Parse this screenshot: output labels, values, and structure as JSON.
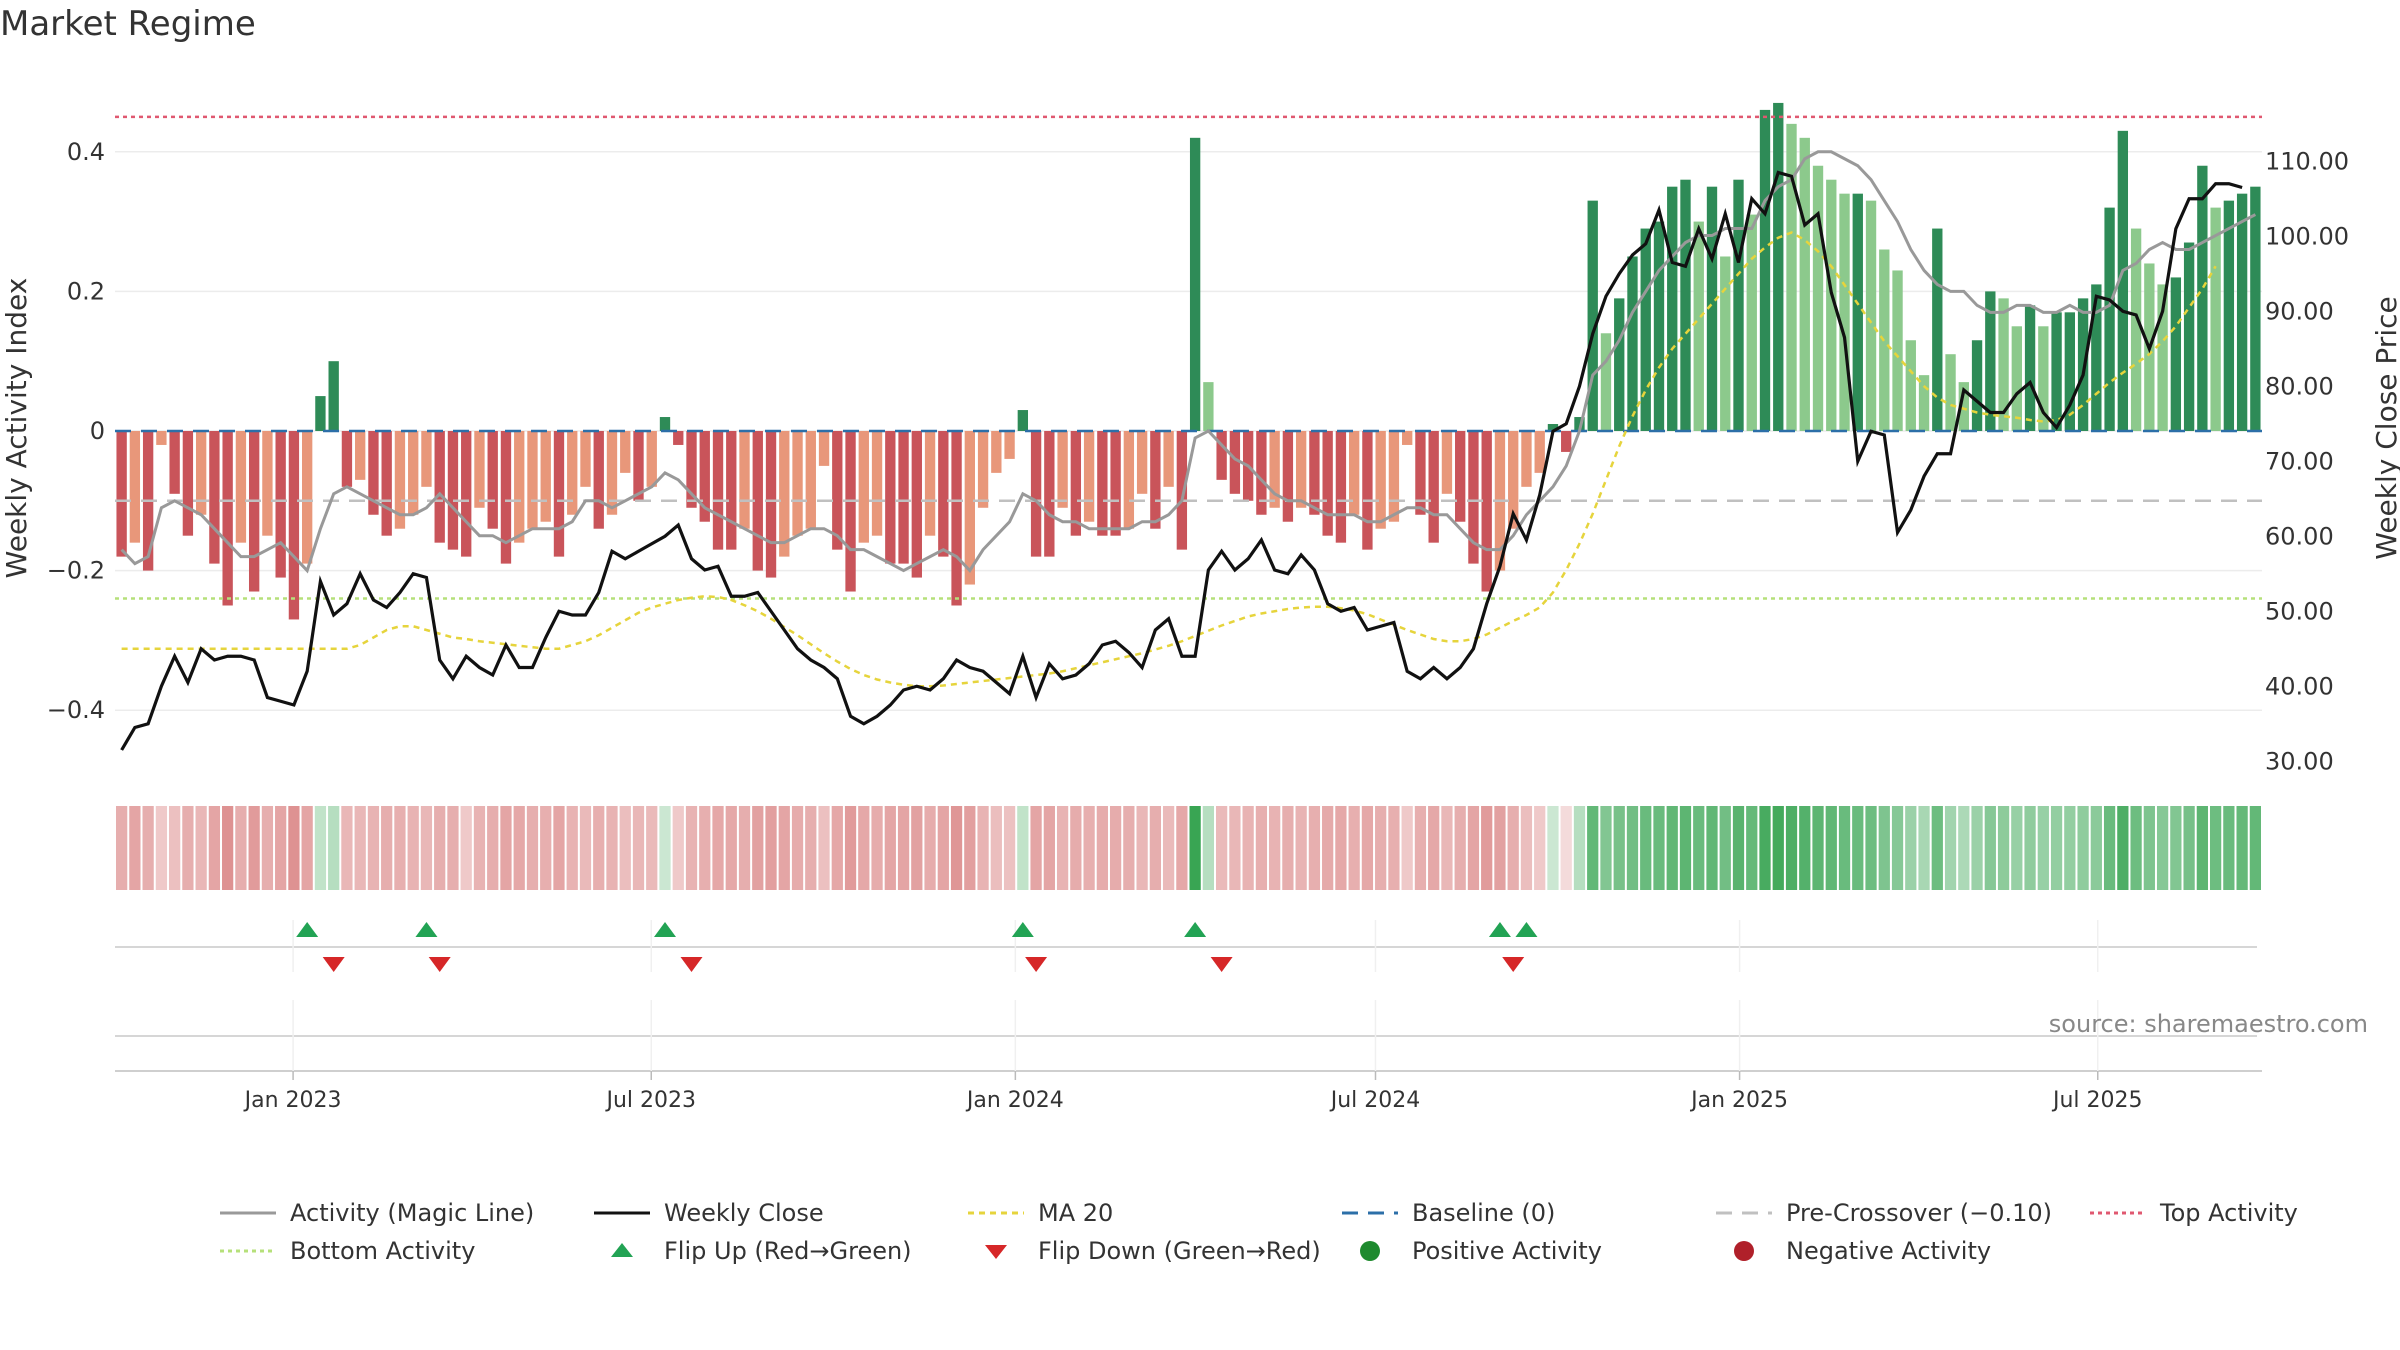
{
  "title": "Market Regime",
  "source": "source: sharemaestro.com",
  "colors": {
    "pos_strong": "#2e8b57",
    "pos_light": "#8cc98c",
    "neg_strong": "#c9545a",
    "neg_light": "#e8977a",
    "magic": "#999999",
    "close": "#111111",
    "ma": "#e6d43c",
    "baseline": "#2c6fa8",
    "pre": "#c0c0c0",
    "top": "#e05870",
    "bottom": "#b6e07a",
    "flip_up": "#22a354",
    "flip_down": "#d62728"
  },
  "legend": [
    {
      "label": "Activity (Magic Line)",
      "kind": "line",
      "color": "#999999",
      "dash": ""
    },
    {
      "label": "Weekly Close",
      "kind": "line",
      "color": "#111111",
      "dash": ""
    },
    {
      "label": "MA 20",
      "kind": "line",
      "color": "#e6d43c",
      "dash": "6 5"
    },
    {
      "label": "Baseline (0)",
      "kind": "line",
      "color": "#2c6fa8",
      "dash": "16 10"
    },
    {
      "label": "Pre-Crossover (−0.10)",
      "kind": "line",
      "color": "#c0c0c0",
      "dash": "16 10"
    },
    {
      "label": "Top Activity",
      "kind": "line",
      "color": "#e05870",
      "dash": "4 4"
    },
    {
      "label": "Bottom Activity",
      "kind": "line",
      "color": "#b6e07a",
      "dash": "4 4"
    },
    {
      "label": "Flip Up (Red→Green)",
      "kind": "up",
      "color": "#22a354",
      "dash": ""
    },
    {
      "label": "Flip Down (Green→Red)",
      "kind": "down",
      "color": "#d62728",
      "dash": ""
    },
    {
      "label": "Positive Activity",
      "kind": "dot",
      "color": "#1e8a2e",
      "dash": ""
    },
    {
      "label": "Negative Activity",
      "kind": "dot",
      "color": "#b0202a",
      "dash": ""
    }
  ],
  "chart_data": {
    "type": "bar",
    "title": "Market Regime",
    "ylabel_left": "Weekly Activity Index",
    "ylabel_right": "Weekly Close Price",
    "ylim_left": [
      -0.5,
      0.51
    ],
    "ylim_right": [
      27.5,
      121.5
    ],
    "yticks_left": [
      {
        "value": 0.4,
        "label": "0.4"
      },
      {
        "value": 0.2,
        "label": "0.2"
      },
      {
        "value": 0,
        "label": "0"
      },
      {
        "value": -0.2,
        "label": "−0.2"
      },
      {
        "value": -0.4,
        "label": "−0.4"
      }
    ],
    "yticks_right": [
      {
        "value": 110,
        "label": "110.00"
      },
      {
        "value": 100,
        "label": "100.00"
      },
      {
        "value": 90,
        "label": "90.00"
      },
      {
        "value": 80,
        "label": "80.00"
      },
      {
        "value": 70,
        "label": "70.00"
      },
      {
        "value": 60,
        "label": "60.00"
      },
      {
        "value": 50,
        "label": "50.00"
      },
      {
        "value": 40,
        "label": "40.00"
      },
      {
        "value": 30,
        "label": "30.00"
      }
    ],
    "x_start": "2022-10-03",
    "x_end": "2025-09-22",
    "xticks": [
      {
        "date": "2023-01-01",
        "label": "Jan 2023"
      },
      {
        "date": "2023-07-01",
        "label": "Jul 2023"
      },
      {
        "date": "2024-01-01",
        "label": "Jan 2024"
      },
      {
        "date": "2024-07-01",
        "label": "Jul 2024"
      },
      {
        "date": "2025-01-01",
        "label": "Jan 2025"
      },
      {
        "date": "2025-07-01",
        "label": "Jul 2025"
      }
    ],
    "reference_lines": {
      "top_activity": 0.45,
      "bottom_activity": -0.24,
      "pre_crossover": -0.1,
      "baseline": 0
    },
    "weekly_activity": [
      -0.18,
      -0.16,
      -0.2,
      -0.02,
      -0.09,
      -0.15,
      -0.12,
      -0.19,
      -0.25,
      -0.16,
      -0.23,
      -0.15,
      -0.21,
      -0.27,
      -0.19,
      0.05,
      0.1,
      -0.08,
      -0.07,
      -0.12,
      -0.15,
      -0.14,
      -0.12,
      -0.08,
      -0.16,
      -0.17,
      -0.18,
      -0.11,
      -0.14,
      -0.19,
      -0.16,
      -0.14,
      -0.13,
      -0.18,
      -0.12,
      -0.08,
      -0.14,
      -0.12,
      -0.06,
      -0.1,
      -0.08,
      0.02,
      -0.02,
      -0.11,
      -0.13,
      -0.17,
      -0.17,
      -0.14,
      -0.2,
      -0.21,
      -0.18,
      -0.15,
      -0.14,
      -0.05,
      -0.17,
      -0.23,
      -0.16,
      -0.15,
      -0.19,
      -0.19,
      -0.21,
      -0.15,
      -0.18,
      -0.25,
      -0.22,
      -0.11,
      -0.06,
      -0.04,
      0.03,
      -0.18,
      -0.18,
      -0.11,
      -0.15,
      -0.13,
      -0.15,
      -0.15,
      -0.14,
      -0.09,
      -0.14,
      -0.08,
      -0.17,
      0.42,
      0.07,
      -0.07,
      -0.09,
      -0.1,
      -0.12,
      -0.11,
      -0.13,
      -0.11,
      -0.12,
      -0.15,
      -0.16,
      -0.12,
      -0.17,
      -0.14,
      -0.13,
      -0.02,
      -0.12,
      -0.16,
      -0.09,
      -0.13,
      -0.19,
      -0.23,
      -0.2,
      -0.14,
      -0.08,
      -0.06,
      0.01,
      -0.03,
      0.02,
      0.33,
      0.14,
      0.19,
      0.25,
      0.29,
      0.3,
      0.35,
      0.36,
      0.3,
      0.35,
      0.25,
      0.36,
      0.31,
      0.46,
      0.47,
      0.44,
      0.42,
      0.38,
      0.36,
      0.34,
      0.34,
      0.33,
      0.26,
      0.23,
      0.13,
      0.08,
      0.29,
      0.11,
      0.07,
      0.13,
      0.2,
      0.19,
      0.15,
      0.18,
      0.15,
      0.17,
      0.17,
      0.19,
      0.21,
      0.32,
      0.43,
      0.29,
      0.24,
      0.21,
      0.22,
      0.27,
      0.38,
      0.32,
      0.33,
      0.34,
      0.35
    ],
    "magic_line": [
      -0.17,
      -0.19,
      -0.18,
      -0.11,
      -0.1,
      -0.11,
      -0.12,
      -0.14,
      -0.16,
      -0.18,
      -0.18,
      -0.17,
      -0.16,
      -0.18,
      -0.2,
      -0.14,
      -0.09,
      -0.08,
      -0.09,
      -0.1,
      -0.11,
      -0.12,
      -0.12,
      -0.11,
      -0.09,
      -0.11,
      -0.13,
      -0.15,
      -0.15,
      -0.16,
      -0.15,
      -0.14,
      -0.14,
      -0.14,
      -0.13,
      -0.1,
      -0.1,
      -0.11,
      -0.1,
      -0.09,
      -0.08,
      -0.06,
      -0.07,
      -0.09,
      -0.11,
      -0.12,
      -0.13,
      -0.14,
      -0.15,
      -0.16,
      -0.16,
      -0.15,
      -0.14,
      -0.14,
      -0.15,
      -0.17,
      -0.17,
      -0.18,
      -0.19,
      -0.2,
      -0.19,
      -0.18,
      -0.17,
      -0.18,
      -0.2,
      -0.17,
      -0.15,
      -0.13,
      -0.09,
      -0.1,
      -0.12,
      -0.13,
      -0.13,
      -0.14,
      -0.14,
      -0.14,
      -0.14,
      -0.13,
      -0.13,
      -0.12,
      -0.1,
      -0.01,
      0.0,
      -0.02,
      -0.04,
      -0.05,
      -0.07,
      -0.09,
      -0.1,
      -0.1,
      -0.11,
      -0.12,
      -0.12,
      -0.12,
      -0.13,
      -0.13,
      -0.12,
      -0.11,
      -0.11,
      -0.12,
      -0.12,
      -0.14,
      -0.16,
      -0.17,
      -0.17,
      -0.15,
      -0.12,
      -0.1,
      -0.08,
      -0.05,
      0.0,
      0.08,
      0.1,
      0.13,
      0.17,
      0.2,
      0.23,
      0.25,
      0.27,
      0.28,
      0.28,
      0.29,
      0.29,
      0.29,
      0.33,
      0.35,
      0.36,
      0.39,
      0.4,
      0.4,
      0.39,
      0.38,
      0.36,
      0.33,
      0.3,
      0.26,
      0.23,
      0.21,
      0.2,
      0.2,
      0.18,
      0.17,
      0.17,
      0.18,
      0.18,
      0.17,
      0.17,
      0.18,
      0.17,
      0.17,
      0.18,
      0.23,
      0.24,
      0.26,
      0.27,
      0.26,
      0.26,
      0.27,
      0.28,
      0.29,
      0.3,
      0.31
    ],
    "weekly_close": [
      31.5,
      34.5,
      35.0,
      40.0,
      44.0,
      40.5,
      45.0,
      43.5,
      44.0,
      44.0,
      43.5,
      38.5,
      38.0,
      37.5,
      42.0,
      54.0,
      49.5,
      51.0,
      55.0,
      51.5,
      50.5,
      52.5,
      55.0,
      54.5,
      43.5,
      41.0,
      44.0,
      42.5,
      41.5,
      45.5,
      42.5,
      42.5,
      46.5,
      50.0,
      49.5,
      49.5,
      52.5,
      58.0,
      57.0,
      58.0,
      59.0,
      60.0,
      61.5,
      57.0,
      55.5,
      56.0,
      52.0,
      52.0,
      52.5,
      50.0,
      47.5,
      45.0,
      43.5,
      42.5,
      41.0,
      36.0,
      35.0,
      36.0,
      37.5,
      39.5,
      40.0,
      39.5,
      41.0,
      43.5,
      42.5,
      42.0,
      40.5,
      39.0,
      44.0,
      38.5,
      43.0,
      41.0,
      41.5,
      43.0,
      45.5,
      46.0,
      44.5,
      42.5,
      47.5,
      49.0,
      44.0,
      44.0,
      55.5,
      58.0,
      55.5,
      57.0,
      59.5,
      55.5,
      55.0,
      57.5,
      55.5,
      51.0,
      50.0,
      50.5,
      47.5,
      48.0,
      48.5,
      42.0,
      41.0,
      42.5,
      41.0,
      42.5,
      45.0,
      51.0,
      56.0,
      63.0,
      59.5,
      65.5,
      74.0,
      75.0,
      80.0,
      87.0,
      92.0,
      95.0,
      97.5,
      99.0,
      103.5,
      96.5,
      96.0,
      101.0,
      97.0,
      103.0,
      96.5,
      105.0,
      103.0,
      108.5,
      108.0,
      101.5,
      103.0,
      92.5,
      86.5,
      70.0,
      74.0,
      73.5,
      60.5,
      63.5,
      68.0,
      71.0,
      71.0,
      79.5,
      78.0,
      76.5,
      76.5,
      79.0,
      80.5,
      76.5,
      74.5,
      77.5,
      81.5,
      92.0,
      91.5,
      90.0,
      89.5,
      85.0,
      90.0,
      101.0,
      105.0,
      105.0,
      107.0,
      107.0,
      106.5
    ],
    "ma20": [
      45.0,
      45.0,
      45.0,
      45.0,
      45.0,
      45.0,
      45.0,
      45.0,
      45.0,
      45.0,
      45.0,
      45.0,
      45.0,
      45.0,
      45.0,
      45.0,
      45.0,
      45.0,
      45.5,
      46.5,
      47.5,
      48.0,
      48.0,
      47.5,
      47.0,
      46.5,
      46.3,
      46.0,
      45.8,
      45.6,
      45.4,
      45.2,
      45.0,
      45.0,
      45.5,
      46.0,
      46.8,
      47.8,
      48.8,
      49.8,
      50.5,
      51.0,
      51.5,
      51.8,
      52.0,
      51.9,
      51.5,
      50.8,
      50.0,
      49.0,
      47.9,
      46.8,
      45.6,
      44.4,
      43.3,
      42.3,
      41.5,
      40.9,
      40.5,
      40.2,
      40.0,
      40.0,
      40.1,
      40.3,
      40.5,
      40.7,
      40.9,
      41.1,
      41.3,
      41.5,
      41.7,
      42.0,
      42.4,
      42.8,
      43.2,
      43.6,
      44.0,
      44.4,
      44.9,
      45.4,
      46.0,
      46.7,
      47.4,
      48.1,
      48.7,
      49.3,
      49.7,
      50.0,
      50.3,
      50.5,
      50.6,
      50.6,
      50.4,
      50.1,
      49.6,
      48.9,
      48.2,
      47.5,
      46.9,
      46.3,
      46.0,
      46.0,
      46.3,
      46.9,
      47.8,
      48.7,
      49.5,
      50.5,
      52.5,
      55.5,
      59.0,
      63.0,
      67.5,
      72.0,
      76.0,
      79.5,
      82.5,
      85.0,
      87.0,
      89.0,
      91.0,
      93.0,
      95.0,
      97.0,
      98.5,
      99.8,
      100.5,
      99.5,
      98.0,
      96.0,
      93.5,
      91.0,
      88.5,
      86.0,
      84.0,
      82.0,
      80.0,
      78.5,
      77.5,
      77.0,
      76.5,
      76.2,
      76.0,
      75.8,
      75.5,
      75.3,
      75.5,
      76.2,
      77.5,
      79.0,
      80.5,
      81.8,
      83.0,
      84.3,
      86.0,
      88.0,
      90.5,
      93.0,
      96.0
    ],
    "regime_intensity": [
      0.45,
      0.5,
      0.45,
      0.3,
      0.35,
      0.45,
      0.4,
      0.5,
      0.6,
      0.45,
      0.55,
      0.45,
      0.5,
      0.6,
      0.5,
      0.3,
      0.35,
      0.4,
      0.4,
      0.42,
      0.45,
      0.44,
      0.42,
      0.4,
      0.45,
      0.45,
      0.3,
      0.42,
      0.45,
      0.5,
      0.48,
      0.45,
      0.44,
      0.5,
      0.42,
      0.38,
      0.44,
      0.42,
      0.36,
      0.4,
      0.38,
      0.25,
      0.3,
      0.42,
      0.44,
      0.48,
      0.48,
      0.45,
      0.52,
      0.53,
      0.5,
      0.46,
      0.45,
      0.35,
      0.48,
      0.55,
      0.48,
      0.46,
      0.5,
      0.5,
      0.52,
      0.46,
      0.5,
      0.58,
      0.53,
      0.42,
      0.36,
      0.34,
      0.3,
      0.5,
      0.5,
      0.42,
      0.46,
      0.44,
      0.46,
      0.46,
      0.45,
      0.4,
      0.45,
      0.38,
      0.48,
      0.95,
      0.35,
      0.38,
      0.4,
      0.42,
      0.44,
      0.42,
      0.45,
      0.42,
      0.44,
      0.47,
      0.48,
      0.44,
      0.48,
      0.45,
      0.44,
      0.3,
      0.44,
      0.48,
      0.4,
      0.45,
      0.5,
      0.55,
      0.52,
      0.45,
      0.36,
      0.3,
      0.25,
      0.2,
      0.35,
      0.75,
      0.6,
      0.65,
      0.68,
      0.72,
      0.72,
      0.76,
      0.78,
      0.72,
      0.76,
      0.68,
      0.8,
      0.74,
      0.88,
      0.9,
      0.85,
      0.82,
      0.78,
      0.76,
      0.72,
      0.72,
      0.7,
      0.62,
      0.58,
      0.48,
      0.42,
      0.7,
      0.45,
      0.4,
      0.48,
      0.58,
      0.55,
      0.5,
      0.54,
      0.5,
      0.52,
      0.52,
      0.54,
      0.56,
      0.72,
      0.85,
      0.7,
      0.62,
      0.58,
      0.6,
      0.66,
      0.78,
      0.7,
      0.72,
      0.74,
      0.75
    ],
    "flip_up_weeks": [
      14,
      23,
      41,
      68,
      81,
      104,
      106
    ],
    "flip_down_weeks": [
      16,
      24,
      43,
      69,
      83,
      105
    ]
  }
}
